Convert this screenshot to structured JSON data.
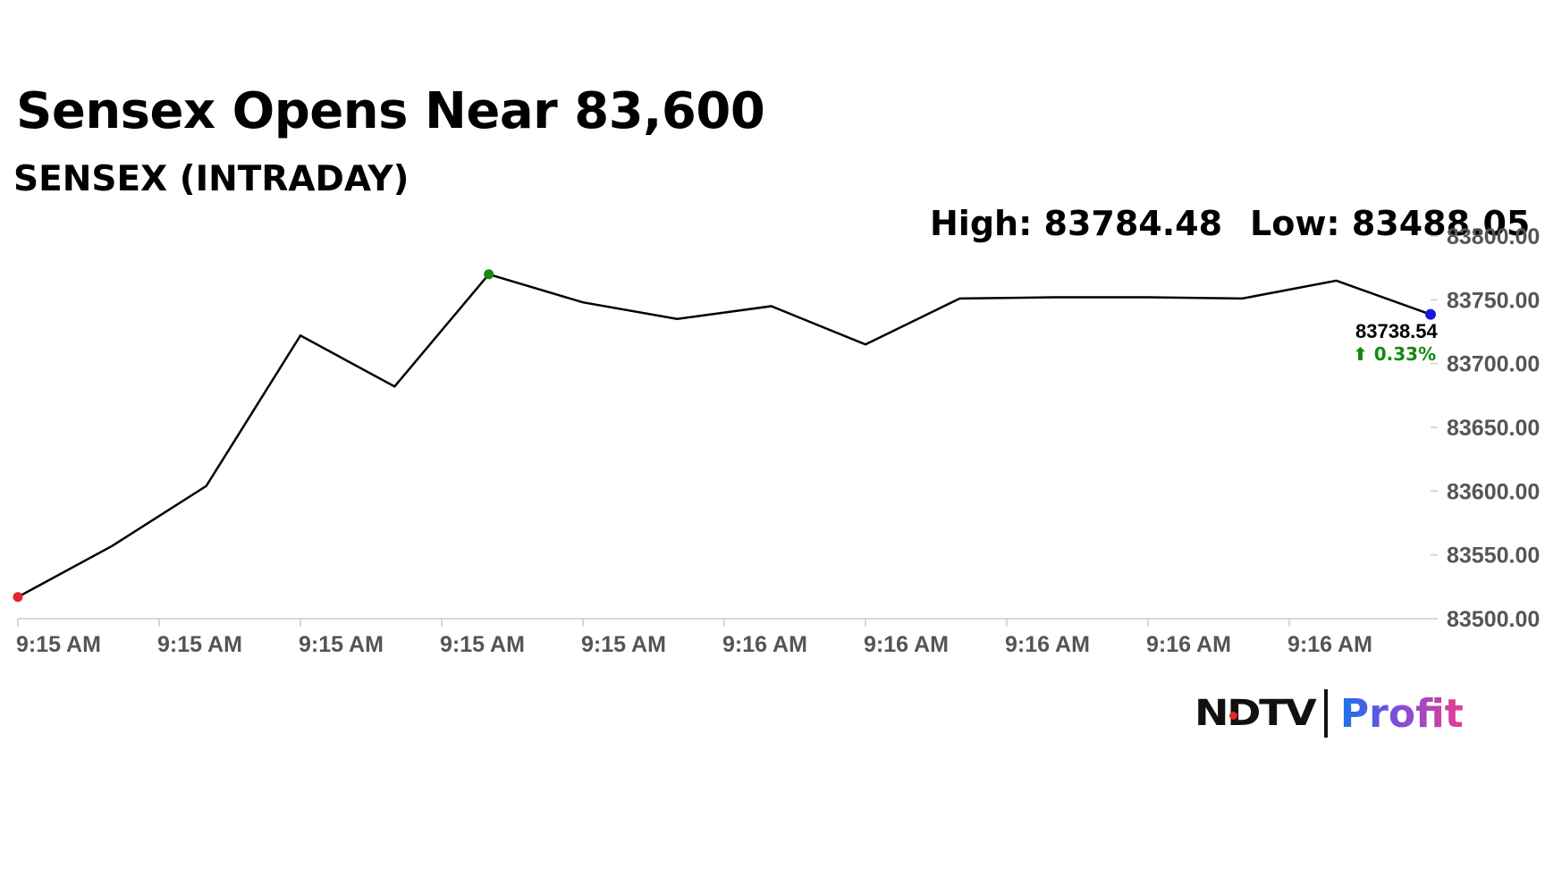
{
  "header": {
    "title": "Sensex Opens Near 83,600",
    "subtitle": "SENSEX (INTRADAY)"
  },
  "stats": {
    "high": "High: 83784.48",
    "low": "Low: 83488.05"
  },
  "chart_data": {
    "type": "line",
    "x_labels": [
      "9:15 AM",
      "9:15 AM",
      "9:15 AM",
      "9:15 AM",
      "9:15 AM",
      "9:16 AM",
      "9:16 AM",
      "9:16 AM",
      "9:16 AM",
      "9:16 AM"
    ],
    "series": [
      {
        "values": [
          83517,
          83557,
          83604,
          83722,
          83682,
          83770,
          83748,
          83735,
          83745,
          83715,
          83751,
          83752,
          83752,
          83751,
          83765,
          83738.54
        ],
        "color": "#000000"
      }
    ],
    "ylim": [
      83500,
      83800
    ],
    "y_ticks": [
      "83500.00",
      "83550.00",
      "83600.00",
      "83650.00",
      "83700.00",
      "83750.00",
      "83800.00"
    ],
    "last_value_label": "83738.54",
    "change_label": "⬆ 0.33%",
    "markers": {
      "start": "#e3262b",
      "high": "#138a13",
      "last": "#1a1ad6"
    },
    "change_color": "#138a13",
    "grid": false
  },
  "branding": {
    "logo_ndtv": "NDTV",
    "logo_profit": "Profit"
  }
}
